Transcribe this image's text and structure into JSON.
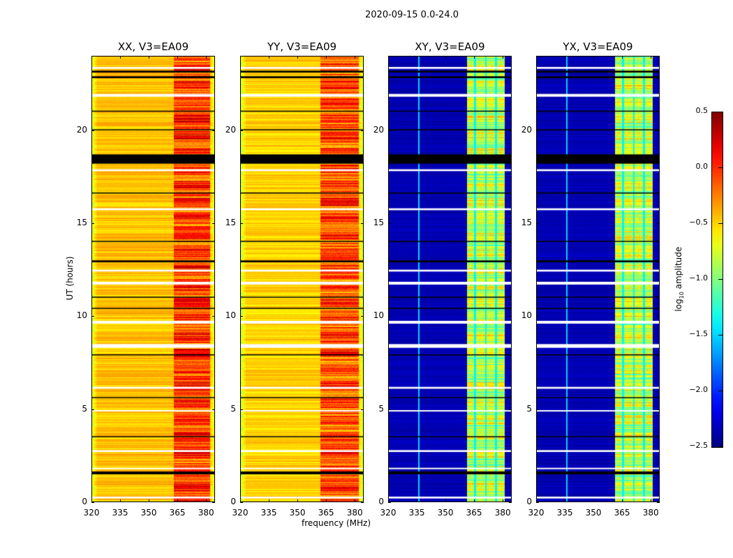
{
  "chart_data": {
    "type": "heatmap",
    "title": "2020-09-15 0.0-24.0",
    "xlabel": "frequency (MHz)",
    "ylabel": "UT (hours)",
    "xlim": [
      320,
      384.7
    ],
    "ylim": [
      0,
      24
    ],
    "xticks": [
      "320",
      "335",
      "350",
      "365",
      "380"
    ],
    "yticks": [
      "0",
      "5",
      "10",
      "15",
      "20"
    ],
    "colormap": "jet",
    "colorbar": {
      "label_pre": "log",
      "label_sub": "10",
      "label_post": " amplitude",
      "range": [
        -2.5,
        0.5
      ],
      "ticks": [
        "0.5",
        "0.0",
        "−0.5",
        "−1.0",
        "−1.5",
        "−2.0",
        "−2.5"
      ]
    },
    "panels": [
      {
        "title": "XX, V3=EA09",
        "base_level": -0.45,
        "edge_level": -0.75,
        "band_mhz": [
          363,
          382
        ],
        "band_level": -0.05,
        "band_gaps_mhz": [],
        "cyan_line_mhz": null
      },
      {
        "title": "YY, V3=EA09",
        "base_level": -0.5,
        "edge_level": -0.8,
        "band_mhz": [
          362,
          382
        ],
        "band_level": -0.1,
        "band_gaps_mhz": [],
        "cyan_line_mhz": null
      },
      {
        "title": "XY, V3=EA09",
        "base_level": -2.35,
        "edge_level": -2.35,
        "band_mhz": [
          361,
          380.7
        ],
        "band_level": -0.8,
        "band_gaps_mhz": [
          365.4,
          370.9,
          376.3
        ],
        "cyan_line_mhz": 336
      },
      {
        "title": "YX, V3=EA09",
        "base_level": -2.35,
        "edge_level": -2.35,
        "band_mhz": [
          361,
          380.7
        ],
        "band_level": -0.8,
        "band_gaps_mhz": [
          365.4,
          370.9,
          376.3
        ],
        "cyan_line_mhz": 336
      }
    ],
    "flagged_black_hours": [
      [
        18.2,
        18.7
      ],
      [
        1.5,
        1.65
      ],
      [
        12.9,
        13.0
      ],
      [
        22.8,
        22.9
      ],
      [
        23.1,
        23.2
      ],
      [
        20.0,
        20.05
      ],
      [
        21.0,
        21.05
      ],
      [
        14.0,
        14.05
      ],
      [
        3.5,
        3.55
      ],
      [
        5.6,
        5.65
      ],
      [
        7.9,
        7.95
      ],
      [
        10.4,
        10.45
      ],
      [
        11.0,
        11.05
      ],
      [
        16.6,
        16.65
      ]
    ],
    "flagged_white_hours": [
      [
        0.2,
        0.3
      ],
      [
        1.8,
        1.85
      ],
      [
        2.7,
        2.8
      ],
      [
        6.1,
        6.2
      ],
      [
        8.3,
        8.5
      ],
      [
        9.6,
        9.75
      ],
      [
        11.7,
        11.85
      ],
      [
        12.4,
        12.5
      ],
      [
        17.8,
        17.9
      ],
      [
        21.8,
        21.95
      ],
      [
        23.3,
        23.4
      ],
      [
        15.7,
        15.8
      ],
      [
        4.9,
        4.95
      ]
    ]
  }
}
